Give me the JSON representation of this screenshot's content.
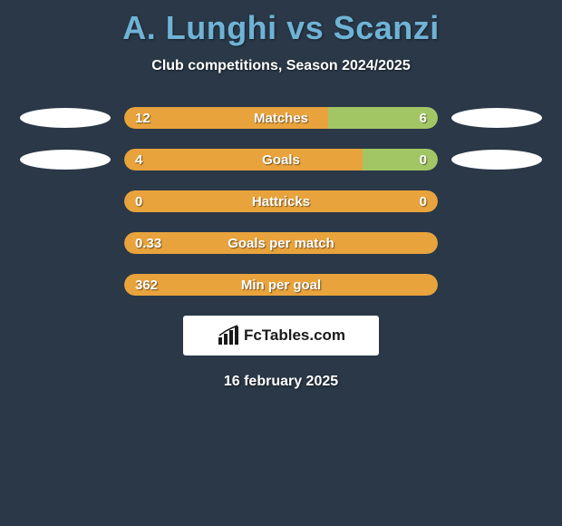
{
  "colors": {
    "background": "#2a3847",
    "title": "#6fb3d6",
    "text": "#ffffff",
    "barA": "#e8a33c",
    "barB": "#a3c664",
    "ellipse": "#ffffff",
    "attribution_bg": "#ffffff",
    "attribution_text": "#1a1a1a"
  },
  "title": "A. Lunghi vs Scanzi",
  "subtitle": "Club competitions, Season 2024/2025",
  "rows": [
    {
      "label": "Matches",
      "left_val": "12",
      "right_val": "6",
      "left_width_pct": 65,
      "right_width_pct": 35,
      "show_left_ellipse": true,
      "show_right_ellipse": true
    },
    {
      "label": "Goals",
      "left_val": "4",
      "right_val": "0",
      "left_width_pct": 76,
      "right_width_pct": 24,
      "show_left_ellipse": true,
      "show_right_ellipse": true
    },
    {
      "label": "Hattricks",
      "left_val": "0",
      "right_val": "0",
      "left_width_pct": 100,
      "right_width_pct": 0,
      "show_left_ellipse": false,
      "show_right_ellipse": false
    },
    {
      "label": "Goals per match",
      "left_val": "0.33",
      "right_val": "",
      "left_width_pct": 100,
      "right_width_pct": 0,
      "show_left_ellipse": false,
      "show_right_ellipse": false
    },
    {
      "label": "Min per goal",
      "left_val": "362",
      "right_val": "",
      "left_width_pct": 100,
      "right_width_pct": 0,
      "show_left_ellipse": false,
      "show_right_ellipse": false
    }
  ],
  "attribution": {
    "text": "FcTables.com"
  },
  "date": "16 february 2025"
}
